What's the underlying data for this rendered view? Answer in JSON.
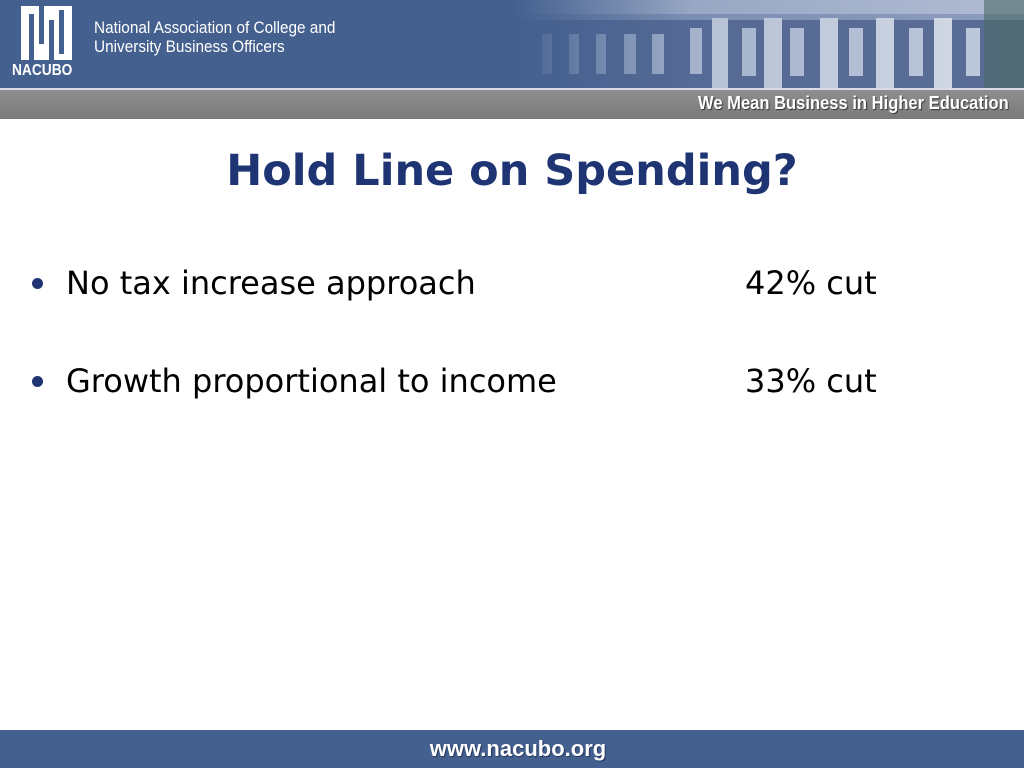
{
  "header": {
    "logo_text": "NACUBO",
    "org_name_line1": "National Association of College and",
    "org_name_line2": "University Business Officers",
    "tagline": "We Mean Business in Higher Education"
  },
  "slide": {
    "title": "Hold Line on Spending?",
    "items": [
      {
        "text": "No tax increase approach",
        "value": "42% cut"
      },
      {
        "text": "Growth proportional to income",
        "value": "33% cut"
      }
    ]
  },
  "footer": {
    "url": "www.nacubo.org"
  },
  "colors": {
    "banner_blue": "#44608f",
    "title_navy": "#1f3473",
    "tagline_gray": "#848484"
  }
}
